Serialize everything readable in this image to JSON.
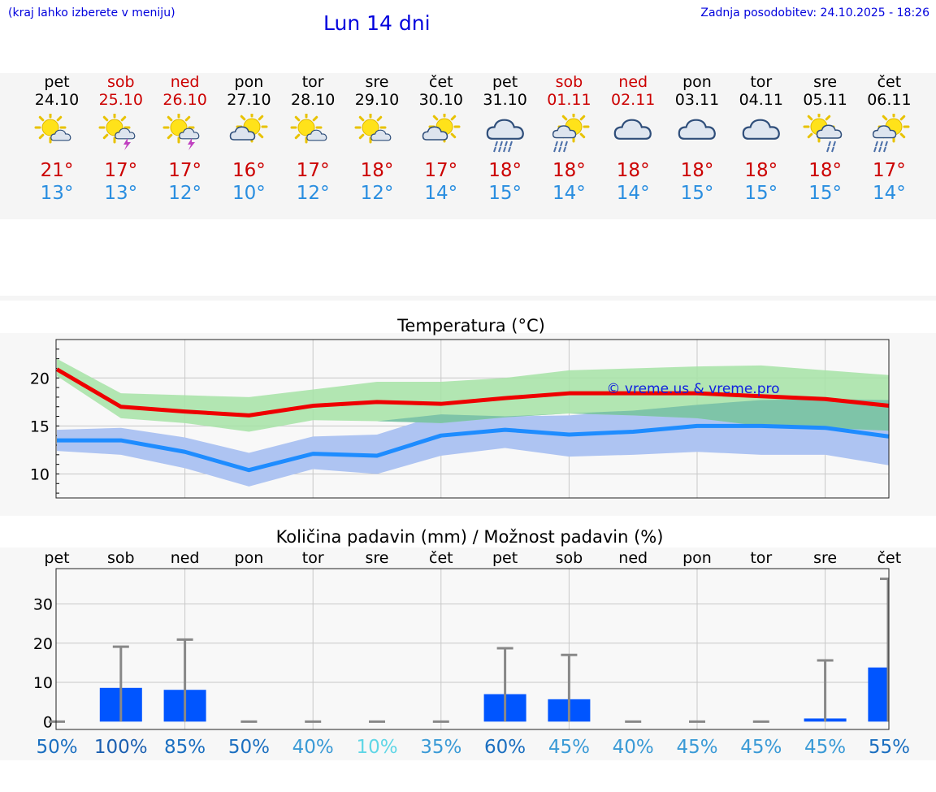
{
  "header": {
    "left_note": "(kraj lahko izberete v meniju)",
    "title": "Lun 14 dni",
    "updated": "Zadnja posodobitev: 24.10.2025 - 18:26"
  },
  "days": [
    {
      "name": "pet",
      "date": "24.10",
      "weekend": false,
      "icon": "sun-cloud-icon",
      "tmax": "21°",
      "tmin": "13°"
    },
    {
      "name": "sob",
      "date": "25.10",
      "weekend": true,
      "icon": "sun-cloud-thunder-icon",
      "tmax": "17°",
      "tmin": "13°"
    },
    {
      "name": "ned",
      "date": "26.10",
      "weekend": true,
      "icon": "sun-cloud-thunder-icon",
      "tmax": "17°",
      "tmin": "12°"
    },
    {
      "name": "pon",
      "date": "27.10",
      "weekend": false,
      "icon": "sun-behind-cloud-icon",
      "tmax": "16°",
      "tmin": "10°"
    },
    {
      "name": "tor",
      "date": "28.10",
      "weekend": false,
      "icon": "sun-cloud-icon",
      "tmax": "17°",
      "tmin": "12°"
    },
    {
      "name": "sre",
      "date": "29.10",
      "weekend": false,
      "icon": "sun-cloud-icon",
      "tmax": "18°",
      "tmin": "12°"
    },
    {
      "name": "čet",
      "date": "30.10",
      "weekend": false,
      "icon": "sun-behind-cloud-icon",
      "tmax": "17°",
      "tmin": "14°"
    },
    {
      "name": "pet",
      "date": "31.10",
      "weekend": false,
      "icon": "cloud-rain-icon",
      "tmax": "18°",
      "tmin": "15°"
    },
    {
      "name": "sob",
      "date": "01.11",
      "weekend": true,
      "icon": "sun-cloud-rain-icon",
      "tmax": "18°",
      "tmin": "14°"
    },
    {
      "name": "ned",
      "date": "02.11",
      "weekend": true,
      "icon": "overcast-icon",
      "tmax": "18°",
      "tmin": "14°"
    },
    {
      "name": "pon",
      "date": "03.11",
      "weekend": false,
      "icon": "overcast-icon",
      "tmax": "18°",
      "tmin": "15°"
    },
    {
      "name": "tor",
      "date": "04.11",
      "weekend": false,
      "icon": "overcast-icon",
      "tmax": "18°",
      "tmin": "15°"
    },
    {
      "name": "sre",
      "date": "05.11",
      "weekend": false,
      "icon": "sun-cloud-drizzle-icon",
      "tmax": "18°",
      "tmin": "15°"
    },
    {
      "name": "čet",
      "date": "06.11",
      "weekend": false,
      "icon": "sun-cloud-rain-icon",
      "tmax": "17°",
      "tmin": "14°"
    }
  ],
  "colors": {
    "tmax_line": "#ee0000",
    "tmin_line": "#1e8cff",
    "tmax_band": "#a6e3a6",
    "tmin_band": "#aec4f2",
    "overlap_band": "#7ec4a8",
    "bar": "#0055ff",
    "whisker": "#888888",
    "weekend_text": "#cc0000",
    "tmin_text": "#2a8ee0"
  },
  "chart_data": [
    {
      "type": "line",
      "title": "Temperatura (°C)",
      "watermark": "© vreme.us & vreme.pro",
      "x": [
        "24.10",
        "25.10",
        "26.10",
        "27.10",
        "28.10",
        "29.10",
        "30.10",
        "31.10",
        "01.11",
        "02.11",
        "03.11",
        "04.11",
        "05.11",
        "06.11"
      ],
      "ylim": [
        7.5,
        24
      ],
      "yticks": [
        10,
        15,
        20
      ],
      "series": [
        {
          "values": [
            20.9,
            17.0,
            16.5,
            16.1,
            17.1,
            17.5,
            17.3,
            17.9,
            18.4,
            18.4,
            18.4,
            18.1,
            17.8,
            17.1
          ],
          "band_low": [
            20.2,
            15.8,
            15.3,
            14.4,
            15.6,
            15.5,
            15.3,
            15.9,
            16.3,
            16.1,
            15.8,
            15.0,
            14.8,
            14.5
          ],
          "band_high": [
            22.0,
            18.4,
            18.2,
            18.0,
            18.8,
            19.6,
            19.6,
            20.0,
            20.8,
            21.0,
            21.2,
            21.3,
            20.8,
            20.3
          ]
        },
        {
          "values": [
            13.5,
            13.5,
            12.3,
            10.4,
            12.1,
            11.9,
            14.0,
            14.6,
            14.1,
            14.4,
            15.0,
            15.0,
            14.8,
            13.9
          ],
          "band_low": [
            12.4,
            12.0,
            10.6,
            8.7,
            10.5,
            10.0,
            11.9,
            12.7,
            11.8,
            12.0,
            12.3,
            12.0,
            12.0,
            10.9
          ],
          "band_high": [
            14.6,
            14.8,
            13.8,
            12.2,
            13.9,
            14.1,
            16.2,
            16.0,
            16.1,
            16.6,
            17.2,
            17.7,
            17.8,
            17.7
          ]
        }
      ],
      "grid": true
    },
    {
      "type": "bar",
      "title": "Količina padavin (mm) / Možnost padavin (%)",
      "categories": [
        "pet",
        "sob",
        "ned",
        "pon",
        "tor",
        "sre",
        "čet",
        "pet",
        "sob",
        "ned",
        "pon",
        "tor",
        "sre",
        "čet"
      ],
      "values": [
        0,
        8.6,
        8.1,
        0,
        0,
        0,
        0,
        7.0,
        5.7,
        0,
        0,
        0,
        0.8,
        13.8
      ],
      "max_values": [
        0,
        19.1,
        20.9,
        0,
        0,
        0,
        0,
        18.7,
        17.0,
        0,
        0,
        0,
        15.6,
        36.4
      ],
      "ylim": [
        -2,
        39
      ],
      "yticks": [
        0,
        10,
        20,
        30
      ],
      "chances": [
        "50%",
        "100%",
        "85%",
        "50%",
        "40%",
        "10%",
        "35%",
        "60%",
        "45%",
        "40%",
        "45%",
        "45%",
        "45%",
        "55%"
      ],
      "chance_colors": [
        "#1b6fc0",
        "#1b5fb0",
        "#1b6fc0",
        "#1b6fc0",
        "#3a9ad6",
        "#5fd6e6",
        "#3a9ad6",
        "#1b6fc0",
        "#3a9ad6",
        "#3a9ad6",
        "#3a9ad6",
        "#3a9ad6",
        "#3a9ad6",
        "#1b6fc0"
      ],
      "grid": true
    }
  ]
}
